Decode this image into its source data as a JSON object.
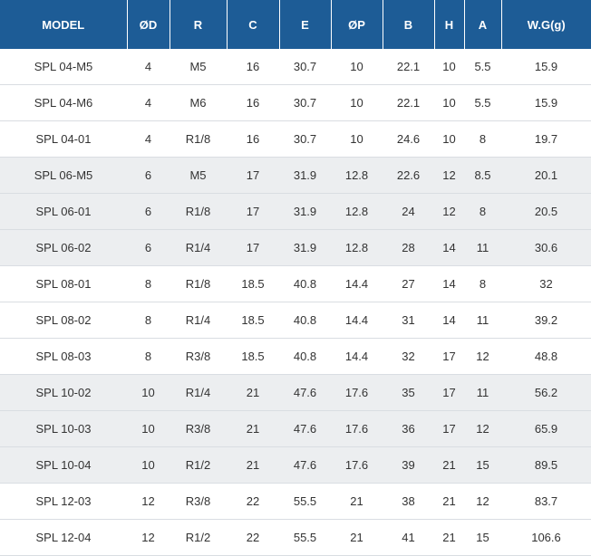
{
  "table": {
    "headers": [
      "MODEL",
      "ØD",
      "R",
      "C",
      "E",
      "ØP",
      "B",
      "H",
      "A",
      "W.G(g)"
    ],
    "rows": [
      [
        "SPL 04-M5",
        "4",
        "M5",
        "16",
        "30.7",
        "10",
        "22.1",
        "10",
        "5.5",
        "15.9"
      ],
      [
        "SPL 04-M6",
        "4",
        "M6",
        "16",
        "30.7",
        "10",
        "22.1",
        "10",
        "5.5",
        "15.9"
      ],
      [
        "SPL 04-01",
        "4",
        "R1/8",
        "16",
        "30.7",
        "10",
        "24.6",
        "10",
        "8",
        "19.7"
      ],
      [
        "SPL 06-M5",
        "6",
        "M5",
        "17",
        "31.9",
        "12.8",
        "22.6",
        "12",
        "8.5",
        "20.1"
      ],
      [
        "SPL 06-01",
        "6",
        "R1/8",
        "17",
        "31.9",
        "12.8",
        "24",
        "12",
        "8",
        "20.5"
      ],
      [
        "SPL 06-02",
        "6",
        "R1/4",
        "17",
        "31.9",
        "12.8",
        "28",
        "14",
        "11",
        "30.6"
      ],
      [
        "SPL 08-01",
        "8",
        "R1/8",
        "18.5",
        "40.8",
        "14.4",
        "27",
        "14",
        "8",
        "32"
      ],
      [
        "SPL 08-02",
        "8",
        "R1/4",
        "18.5",
        "40.8",
        "14.4",
        "31",
        "14",
        "11",
        "39.2"
      ],
      [
        "SPL 08-03",
        "8",
        "R3/8",
        "18.5",
        "40.8",
        "14.4",
        "32",
        "17",
        "12",
        "48.8"
      ],
      [
        "SPL 10-02",
        "10",
        "R1/4",
        "21",
        "47.6",
        "17.6",
        "35",
        "17",
        "11",
        "56.2"
      ],
      [
        "SPL 10-03",
        "10",
        "R3/8",
        "21",
        "47.6",
        "17.6",
        "36",
        "17",
        "12",
        "65.9"
      ],
      [
        "SPL 10-04",
        "10",
        "R1/2",
        "21",
        "47.6",
        "17.6",
        "39",
        "21",
        "15",
        "89.5"
      ],
      [
        "SPL 12-03",
        "12",
        "R3/8",
        "22",
        "55.5",
        "21",
        "38",
        "21",
        "12",
        "83.7"
      ],
      [
        "SPL 12-04",
        "12",
        "R1/2",
        "22",
        "55.5",
        "21",
        "41",
        "21",
        "15",
        "106.6"
      ]
    ],
    "colors": {
      "header_bg": "#1d5c96",
      "shade_row_bg": "#eceef0",
      "text": "#333333"
    }
  }
}
